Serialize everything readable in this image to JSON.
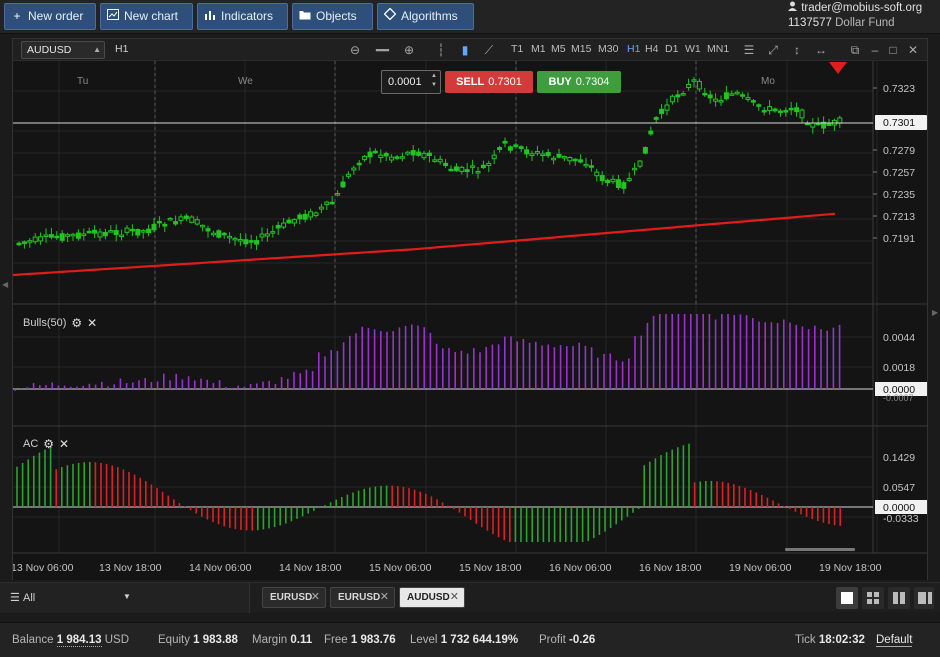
{
  "toolbar": {
    "new_order": "New order",
    "new_chart": "New chart",
    "indicators": "Indicators",
    "objects": "Objects",
    "algorithms": "Algorithms"
  },
  "account": {
    "user": "trader@mobius-soft.org",
    "id": "1137577",
    "fund": "Dollar Fund"
  },
  "chart": {
    "symbol": "AUDUSD",
    "timeframe": "H1",
    "timeframes": [
      "T1",
      "M1",
      "M5",
      "M15",
      "M30",
      "H1",
      "H4",
      "D1",
      "W1",
      "MN1"
    ],
    "active_timeframe": "H1",
    "day_labels": [
      "Tu",
      "We",
      "Mo"
    ],
    "lot": "0.0001",
    "sell_label": "SELL",
    "sell_price": "0.7301",
    "buy_label": "BUY",
    "buy_price": "0.7304",
    "price_ticks": [
      "0.7323",
      "0.7279",
      "0.7257",
      "0.7235",
      "0.7213",
      "0.7191"
    ],
    "current_price": "0.7301",
    "time_ticks": [
      "13 Nov 06:00",
      "13 Nov 18:00",
      "14 Nov 06:00",
      "14 Nov 18:00",
      "15 Nov 06:00",
      "15 Nov 18:00",
      "16 Nov 06:00",
      "16 Nov 18:00",
      "19 Nov 06:00",
      "19 Nov 18:00"
    ],
    "colors": {
      "up": "#22c322",
      "down": "#22c322",
      "ma": "#e21b1b",
      "bulls": "#9933cc",
      "ac_up": "#2aa42a",
      "ac_down": "#e02020"
    }
  },
  "bulls": {
    "label": "Bulls(50)",
    "ticks": [
      "0.0044",
      "0.0018",
      "0.0000",
      "-0.0007"
    ]
  },
  "ac": {
    "label": "AC",
    "ticks": [
      "0.1429",
      "0.0547",
      "0.0000",
      "-0.0333"
    ]
  },
  "tabs": {
    "filter": "All",
    "items": [
      "EURUSD",
      "EURUSD",
      "AUDUSD"
    ],
    "active": "AUDUSD"
  },
  "status": {
    "balance_label": "Balance",
    "balance": "1 984.13",
    "currency": "USD",
    "equity_label": "Equity",
    "equity": "1 983.88",
    "margin_label": "Margin",
    "margin": "0.11",
    "free_label": "Free",
    "free": "1 983.76",
    "level_label": "Level",
    "level": "1 732 644.19%",
    "profit_label": "Profit",
    "profit": "-0.26",
    "tick_label": "Tick",
    "tick": "18:02:32",
    "default_label": "Default"
  }
}
